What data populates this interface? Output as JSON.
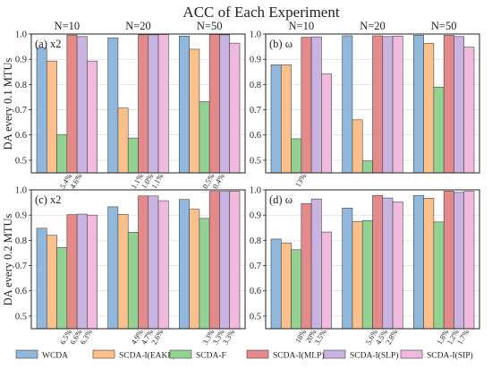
{
  "title": "ACC of Each Experiment",
  "colors": {
    "WCDA": "#8fb8dc",
    "SCDA-I(EAKF)": "#fbc08c",
    "SCDA-F": "#93d293",
    "SCDA-I(MLP)": "#e58a8a",
    "SCDA-I(SLP)": "#c9b3e0",
    "SCDA-I(SIP)": "#f0b9dd"
  },
  "row_labels": [
    "DA every 0.1 MTUs",
    "DA every 0.2 MTUs"
  ],
  "chart_data": [
    {
      "type": "bar",
      "panel": "(a) x2",
      "categories": [
        "N=10",
        "N=20",
        "N=50"
      ],
      "ylim": [
        0.45,
        1.0
      ],
      "yticks": [
        "0.5",
        "0.6",
        "0.7",
        "0.8",
        "0.9",
        "1.0"
      ],
      "grid": true,
      "series": [
        {
          "name": "WCDA",
          "values": [
            0.945,
            0.985,
            0.992
          ]
        },
        {
          "name": "SCDA-I(EAKF)",
          "values": [
            0.893,
            0.707,
            0.94
          ]
        },
        {
          "name": "SCDA-F",
          "values": [
            0.602,
            0.588,
            0.732
          ]
        },
        {
          "name": "SCDA-I(MLP)",
          "values": [
            0.996,
            0.997,
            0.998
          ]
        },
        {
          "name": "SCDA-I(SLP)",
          "values": [
            0.99,
            0.997,
            0.997
          ]
        },
        {
          "name": "SCDA-I(SIP)",
          "values": [
            0.893,
            0.998,
            0.964
          ]
        }
      ],
      "annotations": [
        [
          "5.4%",
          "4.6%"
        ],
        [
          "1.1%",
          "1.0%",
          "1.1%"
        ],
        [
          "0.5%",
          "0.4%"
        ]
      ]
    },
    {
      "type": "bar",
      "panel": "(b) ω",
      "categories": [
        "N=10",
        "N=20",
        "N=50"
      ],
      "ylim": [
        0.45,
        1.0
      ],
      "yticks": [
        "0.5",
        "0.6",
        "0.7",
        "0.8",
        "0.9",
        "1.0"
      ],
      "grid": true,
      "series": [
        {
          "name": "WCDA",
          "values": [
            0.878,
            0.993,
            0.995
          ]
        },
        {
          "name": "SCDA-I(EAKF)",
          "values": [
            0.878,
            0.66,
            0.963
          ]
        },
        {
          "name": "SCDA-F",
          "values": [
            0.585,
            0.497,
            0.79
          ]
        },
        {
          "name": "SCDA-I(MLP)",
          "values": [
            0.987,
            0.993,
            0.995
          ]
        },
        {
          "name": "SCDA-I(SLP)",
          "values": [
            0.989,
            0.99,
            0.99
          ]
        },
        {
          "name": "SCDA-I(SIP)",
          "values": [
            0.842,
            0.992,
            0.948
          ]
        }
      ],
      "annotations": [
        [
          "13%"
        ],
        [],
        []
      ]
    },
    {
      "type": "bar",
      "panel": "(c) x2",
      "categories": [
        "N=10",
        "N=20",
        "N=50"
      ],
      "ylim": [
        0.45,
        1.0
      ],
      "yticks": [
        "0.5",
        "0.6",
        "0.7",
        "0.8",
        "0.9",
        "1.0"
      ],
      "grid": true,
      "series": [
        {
          "name": "WCDA",
          "values": [
            0.848,
            0.933,
            0.962
          ]
        },
        {
          "name": "SCDA-I(EAKF)",
          "values": [
            0.82,
            0.903,
            0.923
          ]
        },
        {
          "name": "SCDA-F",
          "values": [
            0.772,
            0.832,
            0.887
          ]
        },
        {
          "name": "SCDA-I(MLP)",
          "values": [
            0.902,
            0.976,
            0.994
          ]
        },
        {
          "name": "SCDA-I(SLP)",
          "values": [
            0.904,
            0.976,
            0.994
          ]
        },
        {
          "name": "SCDA-I(SIP)",
          "values": [
            0.9,
            0.957,
            0.995
          ]
        }
      ],
      "annotations": [
        [
          "6.5%",
          "6.6%",
          "6.3%"
        ],
        [
          "4.9%",
          "4.7%",
          "2.6%"
        ],
        [
          "3.3%",
          "3.3%",
          "3.3%"
        ]
      ]
    },
    {
      "type": "bar",
      "panel": "(d) ω",
      "categories": [
        "N=10",
        "N=20",
        "N=50"
      ],
      "ylim": [
        0.45,
        1.0
      ],
      "yticks": [
        "0.5",
        "0.6",
        "0.7",
        "0.8",
        "0.9",
        "1.0"
      ],
      "grid": true,
      "series": [
        {
          "name": "WCDA",
          "values": [
            0.805,
            0.928,
            0.978
          ]
        },
        {
          "name": "SCDA-I(EAKF)",
          "values": [
            0.79,
            0.875,
            0.967
          ]
        },
        {
          "name": "SCDA-F",
          "values": [
            0.763,
            0.878,
            0.873
          ]
        },
        {
          "name": "SCDA-I(MLP)",
          "values": [
            0.946,
            0.978,
            0.995
          ]
        },
        {
          "name": "SCDA-I(SLP)",
          "values": [
            0.964,
            0.968,
            0.99
          ]
        },
        {
          "name": "SCDA-I(SIP)",
          "values": [
            0.833,
            0.952,
            0.994
          ]
        }
      ],
      "annotations": [
        [
          "18%",
          "20%",
          "3.5%"
        ],
        [
          "5.6%",
          "4.5%",
          "2.8%"
        ],
        [
          "1.8%",
          "1.2%",
          "1.7%"
        ]
      ]
    }
  ],
  "legend": {
    "items": [
      "WCDA",
      "SCDA-I(EAKF)",
      "SCDA-F",
      "SCDA-I(MLP)",
      "SCDA-I(SLP)",
      "SCDA-I(SIP)"
    ],
    "position": "bottom"
  }
}
